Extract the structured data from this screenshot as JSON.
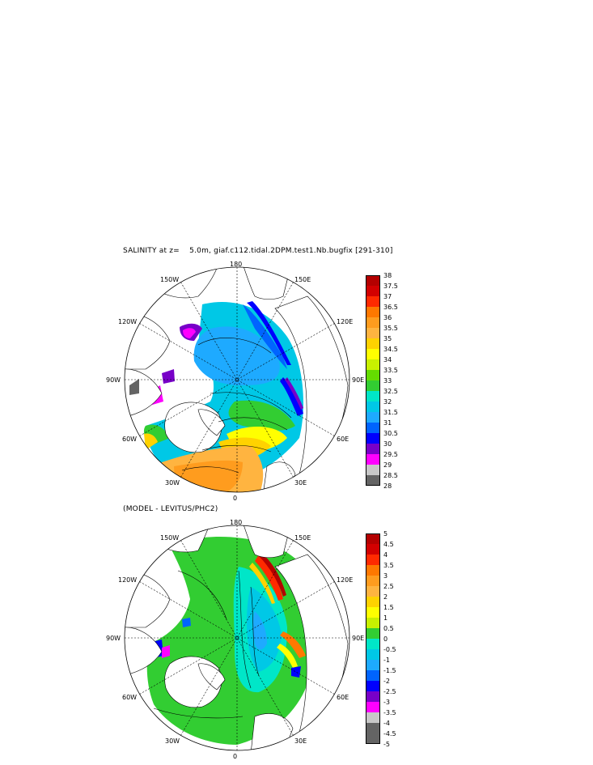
{
  "panel_top": {
    "title": "SALINITY at z=    5.0m, giaf.c112.tidal.2DPM.test1.Nb.bugfix [291-310]",
    "lon_labels": {
      "top": "180",
      "bottom": "0",
      "left": "90W",
      "right": "90E",
      "ul1": "150W",
      "ul2": "120W",
      "ur1": "150E",
      "ur2": "120E",
      "ll1": "60W",
      "ll2": "30W",
      "lr1": "60E",
      "lr2": "30E"
    },
    "colorbar": {
      "labels": [
        "38",
        "37.5",
        "37",
        "36.5",
        "36",
        "35.5",
        "35",
        "34.5",
        "34",
        "33.5",
        "33",
        "32.5",
        "32",
        "31.5",
        "31",
        "30.5",
        "30",
        "29.5",
        "29",
        "28.5",
        "28"
      ],
      "colors": [
        "#b40000",
        "#d20000",
        "#ff2a00",
        "#ff7800",
        "#ff9c1e",
        "#ffb440",
        "#ffd200",
        "#ffff00",
        "#c8f000",
        "#64dc00",
        "#32cd32",
        "#00e6c8",
        "#00c8e6",
        "#1eaaff",
        "#0064ff",
        "#0000ff",
        "#7800c8",
        "#ff00ff",
        "#c8c8c8",
        "#646464"
      ]
    }
  },
  "panel_bottom": {
    "title": "(MODEL - LEVITUS/PHC2)",
    "lon_labels": {
      "top": "180",
      "bottom": "0",
      "left": "90W",
      "right": "90E",
      "ul1": "150W",
      "ul2": "120W",
      "ur1": "150E",
      "ur2": "120E",
      "ll1": "60W",
      "ll2": "30W",
      "lr1": "60E",
      "lr2": "30E"
    },
    "colorbar": {
      "labels": [
        "5",
        "4.5",
        "4",
        "3.5",
        "3",
        "2.5",
        "2",
        "1.5",
        "1",
        "0.5",
        "0",
        "-0.5",
        "-1",
        "-1.5",
        "-2",
        "-2.5",
        "-3",
        "-3.5",
        "-4",
        "-4.5",
        "-5"
      ],
      "colors": [
        "#b40000",
        "#d20000",
        "#ff2a00",
        "#ff7800",
        "#ff9c1e",
        "#ffb440",
        "#ffd200",
        "#ffff00",
        "#c8f000",
        "#32cd32",
        "#00e6c8",
        "#00c8e6",
        "#1eaaff",
        "#0064ff",
        "#0000ff",
        "#7800c8",
        "#ff00ff",
        "#c8c8c8",
        "#646464",
        "#646464"
      ]
    }
  }
}
